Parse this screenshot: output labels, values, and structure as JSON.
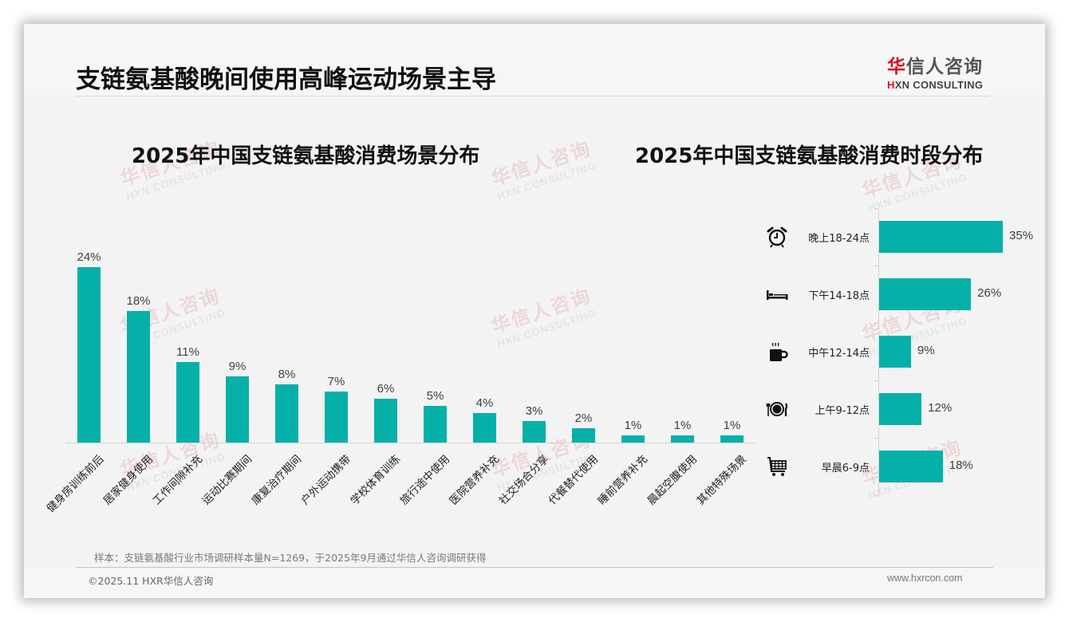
{
  "header": {
    "title": "支链氨基酸晚间使用高峰运动场景主导",
    "logo_cn_red": "华",
    "logo_cn_rest": "信人咨询",
    "logo_en_red": "H",
    "logo_en_rest": "XN CONSULTING"
  },
  "watermark": {
    "cn": "华信人咨询",
    "en": "HXN CONSULTING"
  },
  "left_chart": {
    "title": "2025年中国支链氨基酸消费场景分布"
  },
  "right_chart": {
    "title": "2025年中国支链氨基酸消费时段分布",
    "icons": [
      "alarm-clock-icon",
      "bed-icon",
      "coffee-mug-icon",
      "dining-plate-icon",
      "shopping-cart-icon"
    ]
  },
  "footer": {
    "note": "样本：支链氨基酸行业市场调研样本量N=1269，于2025年9月通过华信人咨询调研获得",
    "copyright": "©2025.11 HXR华信人咨询",
    "website": "www.hxrcon.com"
  },
  "colors": {
    "bar": "#05b0a8",
    "brand_red": "#d0141b"
  },
  "chart_data": [
    {
      "type": "bar",
      "orientation": "vertical",
      "title": "2025年中国支链氨基酸消费场景分布",
      "xlabel": "",
      "ylabel": "",
      "categories": [
        "健身房训练前后",
        "居家健身使用",
        "工作间隙补充",
        "运动比赛期间",
        "康复治疗期间",
        "户外运动携带",
        "学校体育训练",
        "旅行途中使用",
        "医院营养补充",
        "社交场合分享",
        "代餐替代使用",
        "睡前营养补充",
        "晨起空腹使用",
        "其他特殊场景"
      ],
      "values": [
        24,
        18,
        11,
        9,
        8,
        7,
        6,
        5,
        4,
        3,
        2,
        1,
        1,
        1
      ],
      "labels": [
        "24%",
        "18%",
        "11%",
        "9%",
        "8%",
        "7%",
        "6%",
        "5%",
        "4%",
        "3%",
        "2%",
        "1%",
        "1%",
        "1%"
      ],
      "unit": "%",
      "grid": false,
      "legend": "none"
    },
    {
      "type": "bar",
      "orientation": "horizontal",
      "title": "2025年中国支链氨基酸消费时段分布",
      "xlabel": "",
      "ylabel": "",
      "categories": [
        "晚上18-24点",
        "下午14-18点",
        "中午12-14点",
        "上午9-12点",
        "早晨6-9点"
      ],
      "values": [
        35,
        26,
        9,
        12,
        18
      ],
      "labels": [
        "35%",
        "26%",
        "9%",
        "12%",
        "18%"
      ],
      "unit": "%",
      "grid": false,
      "legend": "none"
    }
  ]
}
